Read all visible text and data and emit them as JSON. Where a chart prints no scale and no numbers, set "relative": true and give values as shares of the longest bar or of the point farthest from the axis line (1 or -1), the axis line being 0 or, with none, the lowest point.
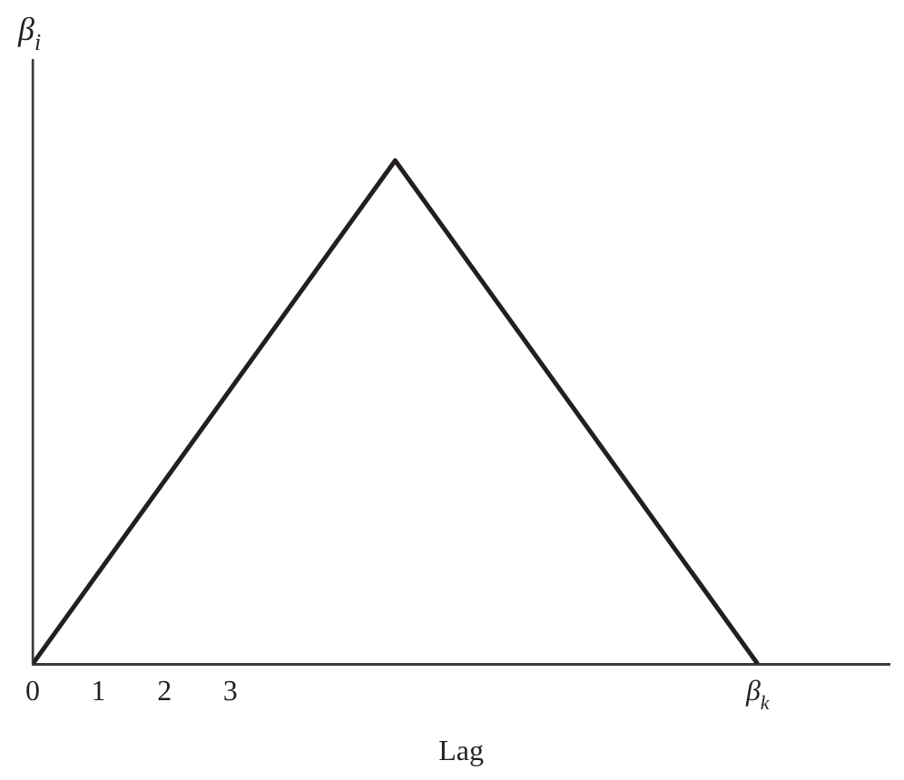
{
  "chart_data": {
    "type": "line",
    "relative": true,
    "xlabel": "Lag",
    "ylabel": "β$_{i}$",
    "x": [
      0,
      5.5,
      11
    ],
    "series": [
      {
        "color": "#231f20",
        "values": [
          0,
          1,
          0
        ]
      }
    ],
    "xlim": [
      0,
      13
    ],
    "xticks": [
      0,
      1,
      2,
      3,
      {
        "value": 11,
        "label": "β$_{k}$"
      }
    ],
    "grid": false,
    "legend": false,
    "marker": "none",
    "line_style": "solid"
  }
}
